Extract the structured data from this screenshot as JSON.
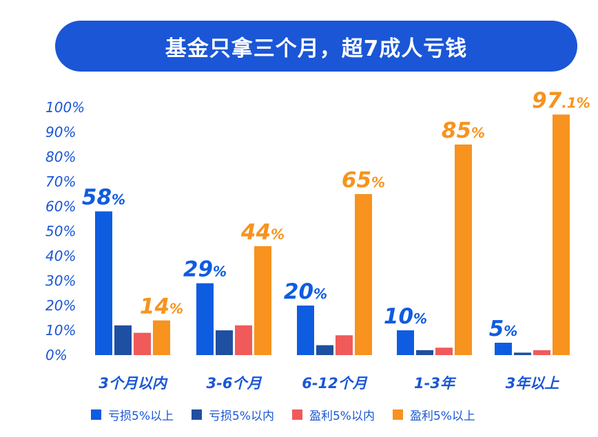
{
  "title": "基金只拿三个月，超7成人亏钱",
  "chart_data": {
    "type": "bar",
    "categories": [
      "3个月以内",
      "3-6个月",
      "6-12个月",
      "1-3年",
      "3年以上"
    ],
    "series": [
      {
        "name": "亏损5%以上",
        "color": "#0e5ce0",
        "values": [
          58,
          29,
          20,
          10,
          5
        ],
        "labels": [
          "58%",
          "29%",
          "20%",
          "10%",
          "5%"
        ]
      },
      {
        "name": "亏损5%以内",
        "color": "#1f4fa0",
        "values": [
          12,
          10,
          4,
          2,
          1
        ]
      },
      {
        "name": "盈利5%以内",
        "color": "#f05a5a",
        "values": [
          9,
          12,
          8,
          3,
          2
        ]
      },
      {
        "name": "盈利5%以上",
        "color": "#f7931e",
        "values": [
          14,
          44,
          65,
          85,
          97.1
        ],
        "labels": [
          "14%",
          "44%",
          "65%",
          "85%",
          "97.1%"
        ]
      }
    ],
    "yticks": [
      "0%",
      "10%",
      "20%",
      "30%",
      "40%",
      "50%",
      "60%",
      "70%",
      "80%",
      "90%",
      "100%"
    ],
    "ylim": [
      0,
      100
    ],
    "grid": false,
    "legend_position": "bottom"
  }
}
